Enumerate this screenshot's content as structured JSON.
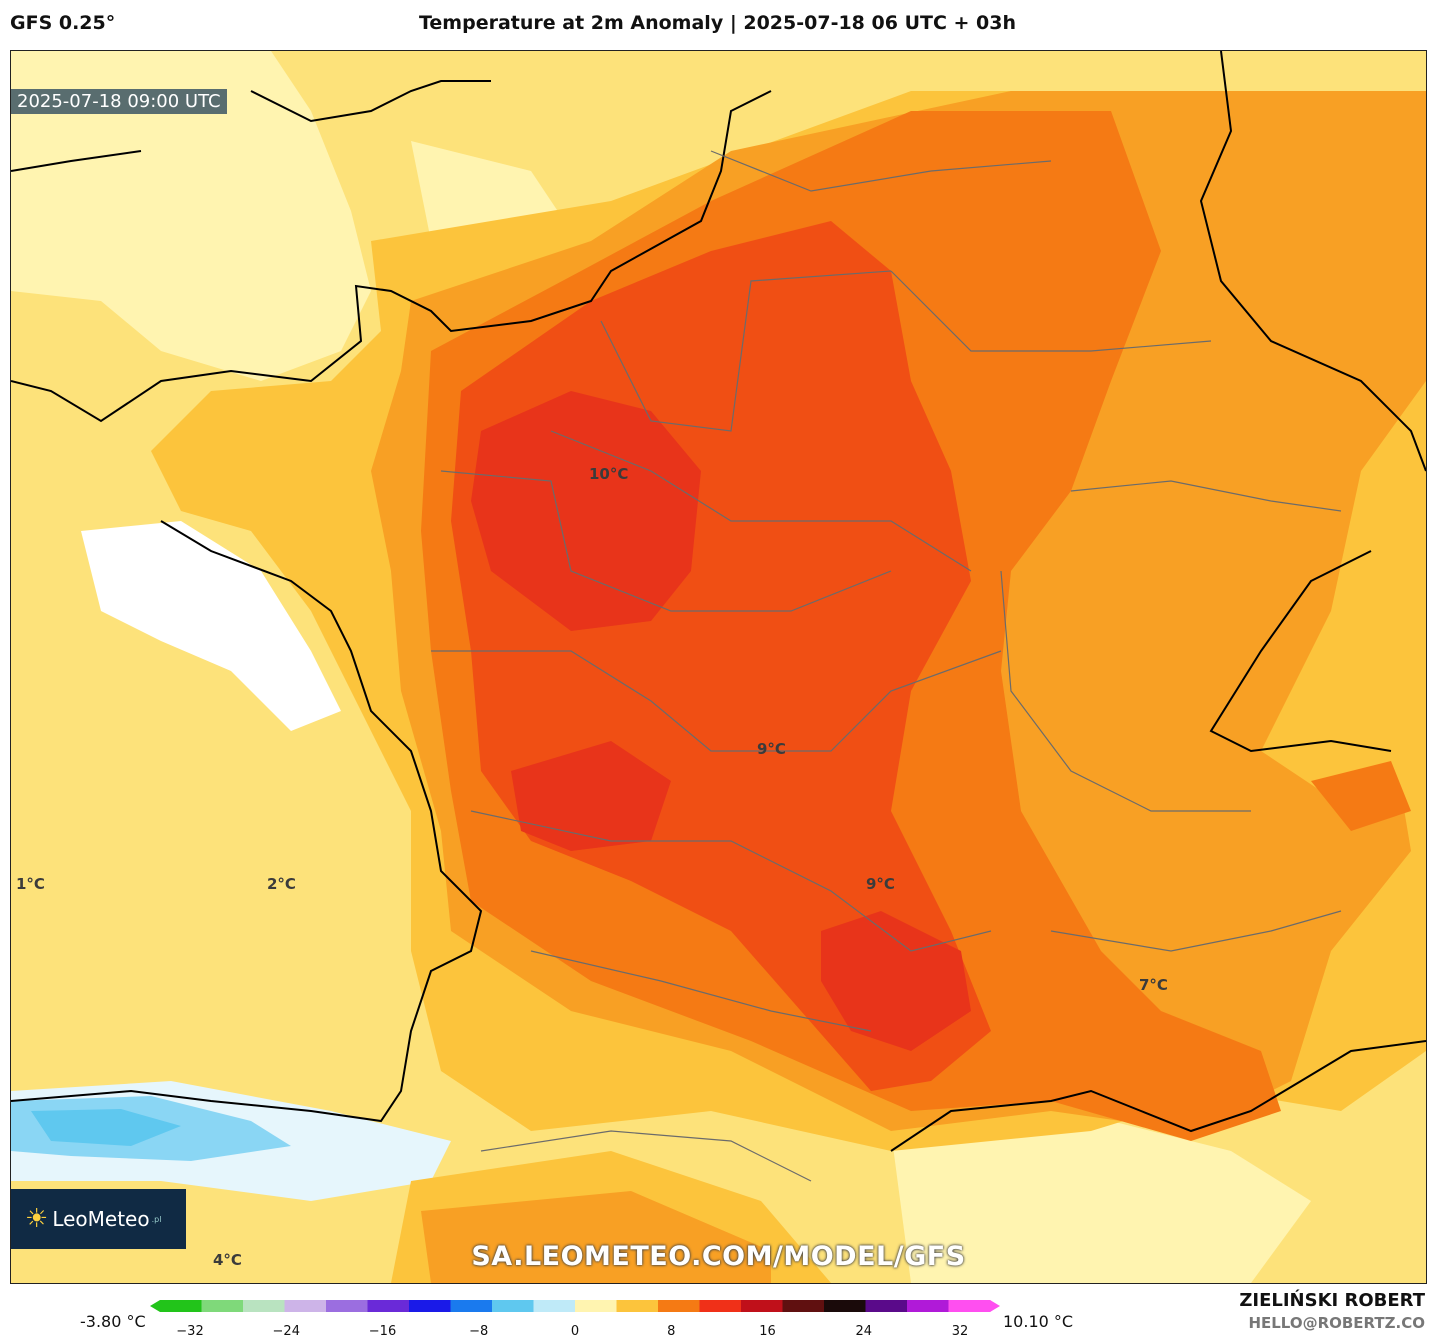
{
  "header": {
    "model": "GFS 0.25°",
    "title": "Temperature at 2m Anomaly | 2025-07-18 06 UTC + 03h"
  },
  "map": {
    "valid_time": "2025-07-18 09:00 UTC",
    "labels": [
      {
        "text": "10°C"
      },
      {
        "text": "9°C"
      },
      {
        "text": "9°C"
      },
      {
        "text": "7°C"
      },
      {
        "text": "1°C"
      },
      {
        "text": "2°C"
      },
      {
        "text": "4°C"
      }
    ],
    "watermark": "SA.LEOMETEO.COM/MODEL/GFS",
    "logo": "LeoMeteo",
    "logo_suffix": ".pl"
  },
  "colors": {
    "pale": "#fff4b0",
    "yellow": "#fde27a",
    "gold": "#fcc43c",
    "orange": "#f8a024",
    "dark_orange": "#f57a14",
    "red_orange": "#f04f14",
    "red": "#e8341a",
    "cold_blue": "#5fc8ef"
  },
  "legend": {
    "min_label": "-3.80 °C",
    "max_label": "10.10 °C",
    "ticks": [
      "−32",
      "−24",
      "−16",
      "−8",
      "0",
      "8",
      "16",
      "24",
      "32"
    ],
    "stops": [
      "#22c41a",
      "#7fd97a",
      "#b9e3c0",
      "#cdb4e8",
      "#9b6ee0",
      "#6a2ad8",
      "#1a1ae8",
      "#1a7aee",
      "#5fc8ef",
      "#bfeaf8",
      "#fff4b0",
      "#fcc43c",
      "#f57a14",
      "#f03018",
      "#c0101a",
      "#601010",
      "#1a0a0a",
      "#5a0a8a",
      "#b01ad8",
      "#ff4ff0"
    ]
  },
  "credits": {
    "author": "ZIELIŃSKI ROBERT",
    "contact": "HELLO@ROBERTZ.CO"
  }
}
